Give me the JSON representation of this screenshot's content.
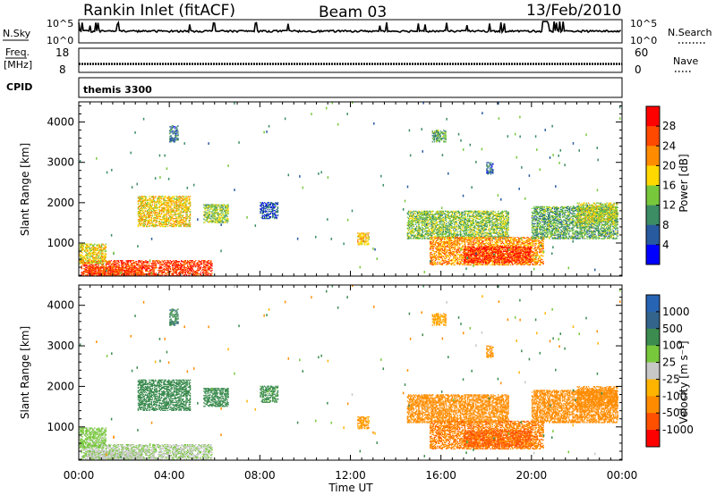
{
  "header": {
    "station": "Rankin Inlet (fitACF)",
    "beam": "Beam 03",
    "date": "13/Feb/2010"
  },
  "nsky_panel": {
    "left_label": "N.Sky",
    "left_ticks": [
      "10^5",
      "10^0"
    ],
    "right_label": "N.Search",
    "right_ticks": [
      "10^5",
      "10^0"
    ]
  },
  "freq_panel": {
    "left_label_1": "Freq.",
    "left_label_2": "[MHz]",
    "left_ticks": [
      "18",
      "8"
    ],
    "right_label": "Nave",
    "right_ticks": [
      "60",
      "0"
    ]
  },
  "cpid_panel": {
    "label": "CPID",
    "value": "themis 3300"
  },
  "power_panel": {
    "ylabel": "Slant Range [km]",
    "colorbar_label": "Power [dB]",
    "colorbar_ticks": [
      "28",
      "24",
      "20",
      "16",
      "12",
      "8",
      "4"
    ],
    "colors": [
      "#ff0000",
      "#ff4800",
      "#ff8c00",
      "#ffd800",
      "#78c83c",
      "#3c8c64",
      "#285aa0",
      "#0000ff"
    ]
  },
  "velocity_panel": {
    "ylabel": "Slant Range [km]",
    "colorbar_label": "Velocity [m s⁻¹]",
    "colorbar_ticks": [
      "1000",
      "500",
      "100",
      "25",
      "-25",
      "-100",
      "-500",
      "-1000"
    ],
    "colors": [
      "#2864b4",
      "#32648c",
      "#3c8c50",
      "#78c83c",
      "#c8c8c8",
      "#ffb400",
      "#ff8c00",
      "#ff5000",
      "#ff0000"
    ]
  },
  "x_axis": {
    "label": "Time UT",
    "ticks": [
      "00:00",
      "04:00",
      "08:00",
      "12:00",
      "16:00",
      "20:00",
      "00:00"
    ]
  },
  "chart_data": {
    "type": "heatmap",
    "title": "Rankin Inlet (fitACF)",
    "xlabel": "Time UT",
    "ylabel": "Slant Range [km]",
    "x_range_hours": [
      0,
      24
    ],
    "y_range_km": [
      180,
      4500
    ],
    "y_ticks": [
      1000,
      2000,
      3000,
      4000
    ],
    "power_scale_db": [
      0,
      32
    ],
    "velocity_scale_ms": [
      -1200,
      1200
    ],
    "nsky_range": [
      0,
      100000
    ],
    "freq_range_mhz": [
      8,
      18
    ],
    "nave_range": [
      0,
      60
    ],
    "freq_value_mhz": 11.5,
    "patches": [
      {
        "t0": 0.1,
        "t1": 5.9,
        "r0": 180,
        "r1": 560,
        "power": 27,
        "velocity": 20
      },
      {
        "t0": 0.3,
        "t1": 2.8,
        "r0": 180,
        "r1": 420,
        "power": 26,
        "velocity": 10
      },
      {
        "t0": 0.0,
        "t1": 1.2,
        "r0": 480,
        "r1": 980,
        "power": 18,
        "velocity": 50
      },
      {
        "t0": 2.6,
        "t1": 4.9,
        "r0": 1400,
        "r1": 2150,
        "power": 19,
        "velocity": 300
      },
      {
        "t0": 5.5,
        "t1": 6.6,
        "r0": 1500,
        "r1": 1950,
        "power": 14,
        "velocity": 250
      },
      {
        "t0": 4.0,
        "t1": 4.4,
        "r0": 3500,
        "r1": 3900,
        "power": 8,
        "velocity": 400
      },
      {
        "t0": 8.0,
        "t1": 8.8,
        "r0": 1600,
        "r1": 2000,
        "power": 6,
        "velocity": 150
      },
      {
        "t0": 12.3,
        "t1": 12.8,
        "r0": 950,
        "r1": 1250,
        "power": 20,
        "velocity": -100
      },
      {
        "t0": 14.5,
        "t1": 19.0,
        "r0": 1100,
        "r1": 1800,
        "power": 14,
        "velocity": -200
      },
      {
        "t0": 15.5,
        "t1": 20.5,
        "r0": 450,
        "r1": 1150,
        "power": 22,
        "velocity": -400
      },
      {
        "t0": 17.0,
        "t1": 20.0,
        "r0": 500,
        "r1": 900,
        "power": 28,
        "velocity": -600
      },
      {
        "t0": 20.0,
        "t1": 23.8,
        "r0": 1100,
        "r1": 1900,
        "power": 12,
        "velocity": -250
      },
      {
        "t0": 22.0,
        "t1": 23.8,
        "r0": 1500,
        "r1": 2000,
        "power": 16,
        "velocity": -300
      },
      {
        "t0": 15.6,
        "t1": 16.2,
        "r0": 3500,
        "r1": 3800,
        "power": 12,
        "velocity": -100
      },
      {
        "t0": 18.0,
        "t1": 18.3,
        "r0": 2700,
        "r1": 3000,
        "power": 8,
        "velocity": -150
      }
    ]
  }
}
